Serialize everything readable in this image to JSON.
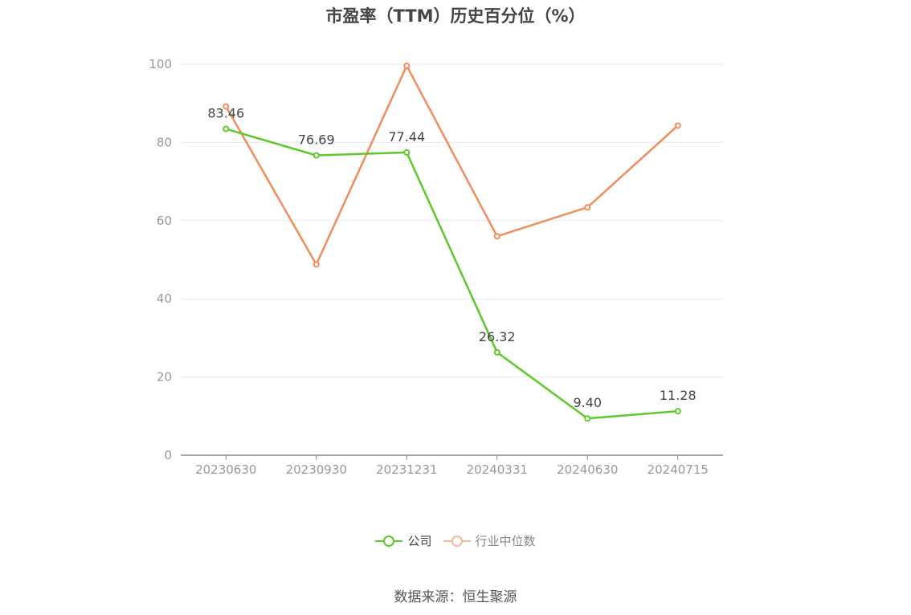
{
  "chart_data": {
    "type": "line",
    "title": "市盈率（TTM）历史百分位（%）",
    "categories": [
      "20230630",
      "20230930",
      "20231231",
      "20240331",
      "20240630",
      "20240715"
    ],
    "ylim": [
      0,
      100
    ],
    "yticks": [
      0,
      20,
      40,
      60,
      80,
      100
    ],
    "grid": true,
    "legend_position": "bottom",
    "series": [
      {
        "name": "公司",
        "color": "#5cc92a",
        "values": [
          83.46,
          76.69,
          77.44,
          26.32,
          9.4,
          11.28
        ],
        "labels": [
          "83.46",
          "76.69",
          "77.44",
          "26.32",
          "9.40",
          "11.28"
        ]
      },
      {
        "name": "行业中位数",
        "color": "#f28c5b",
        "values": [
          89.2,
          48.8,
          99.6,
          56.0,
          63.4,
          84.3
        ]
      }
    ]
  },
  "legend": {
    "company_label": "公司",
    "industry_label": "行业中位数",
    "company_color": "#5cc92a",
    "industry_color": "#f5b89a"
  },
  "source": "数据来源：恒生聚源"
}
